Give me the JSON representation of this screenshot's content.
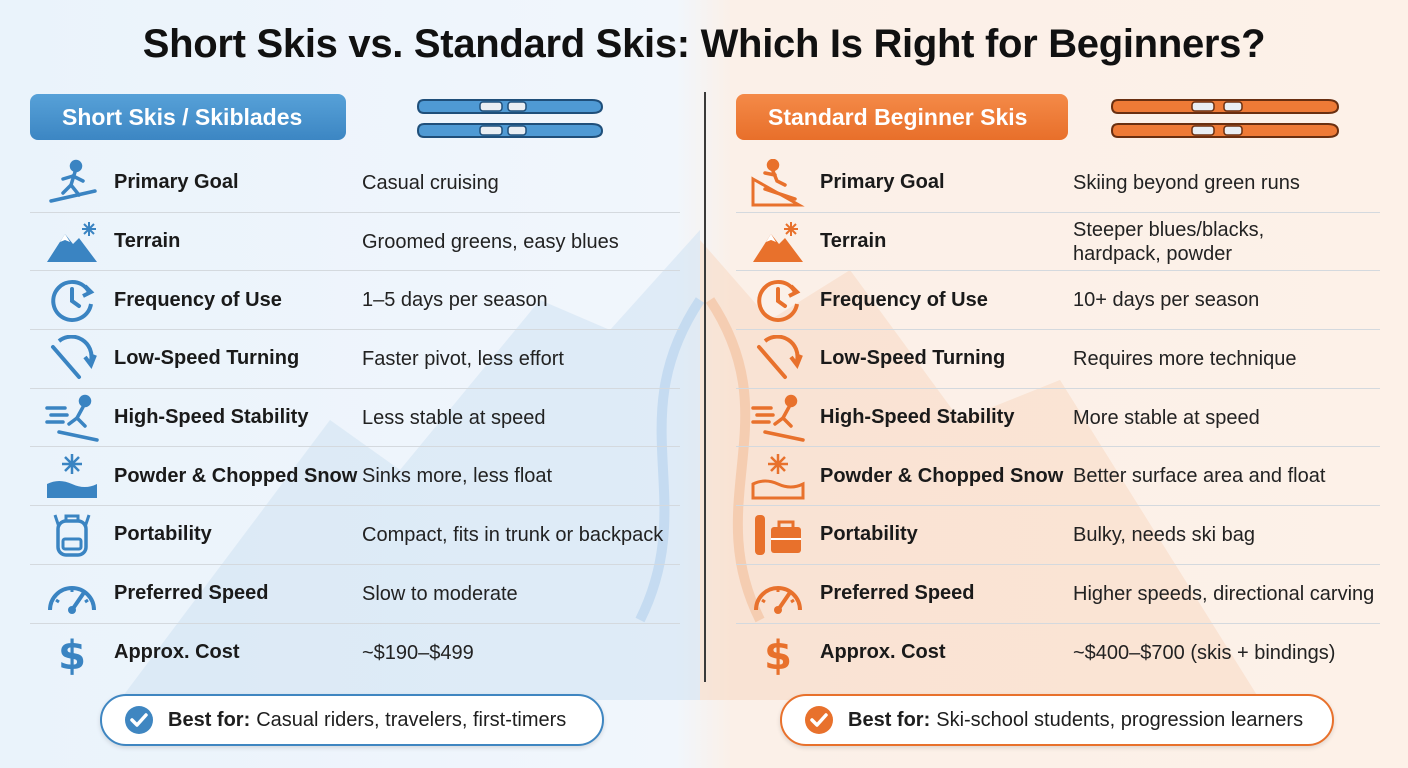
{
  "title": "Short Skis vs. Standard Skis: Which Is Right for Beginners?",
  "colors": {
    "short_accent": "#3f86c1",
    "standard_accent": "#e8712c"
  },
  "short": {
    "heading": "Short Skis / Skiblades",
    "rows": [
      {
        "icon": "skier-icon",
        "label": "Primary Goal",
        "value": "Casual cruising"
      },
      {
        "icon": "mountain-snowflake-icon",
        "label": "Terrain",
        "value": "Groomed greens, easy blues"
      },
      {
        "icon": "clock-icon",
        "label": "Frequency of Use",
        "value": "1–5 days per season"
      },
      {
        "icon": "turn-arrow-icon",
        "label": "Low-Speed Turning",
        "value": "Faster pivot, less effort"
      },
      {
        "icon": "speeding-skier-icon",
        "label": "High-Speed Stability",
        "value": "Less stable at speed"
      },
      {
        "icon": "snowflake-powder-icon",
        "label": "Powder & Chopped Snow",
        "value": "Sinks more, less float"
      },
      {
        "icon": "backpack-icon",
        "label": "Portability",
        "value": "Compact, fits in trunk or backpack"
      },
      {
        "icon": "speedometer-icon",
        "label": "Preferred Speed",
        "value": "Slow to moderate"
      },
      {
        "icon": "dollar-icon",
        "label": "Approx. Cost",
        "value": "~$190–$499"
      }
    ],
    "best_for_label": "Best for:",
    "best_for_value": "Casual riders, travelers, first-timers"
  },
  "standard": {
    "heading": "Standard Beginner Skis",
    "rows": [
      {
        "icon": "skier-slope-icon",
        "label": "Primary Goal",
        "value": "Skiing beyond green runs"
      },
      {
        "icon": "mountain-snowflake-icon",
        "label": "Terrain",
        "value": "Steeper blues/blacks,",
        "value2": "hardpack, powder"
      },
      {
        "icon": "clock-icon",
        "label": "Frequency of Use",
        "value": "10+ days per season"
      },
      {
        "icon": "turn-arrow-icon",
        "label": "Low-Speed Turning",
        "value": "Requires more technique"
      },
      {
        "icon": "speeding-skier-icon",
        "label": "High-Speed Stability",
        "value": "More stable at speed"
      },
      {
        "icon": "snowflake-powder-icon",
        "label": "Powder & Chopped Snow",
        "value": "Better surface area and float"
      },
      {
        "icon": "ski-bag-luggage-icon",
        "label": "Portability",
        "value": "Bulky, needs ski bag"
      },
      {
        "icon": "speedometer-icon",
        "label": "Preferred Speed",
        "value": "Higher speeds, directional carving"
      },
      {
        "icon": "dollar-icon",
        "label": "Approx. Cost",
        "value": "~$400–$700 (skis + bindings)"
      }
    ],
    "best_for_label": "Best for:",
    "best_for_value": "Ski-school students, progression learners"
  }
}
